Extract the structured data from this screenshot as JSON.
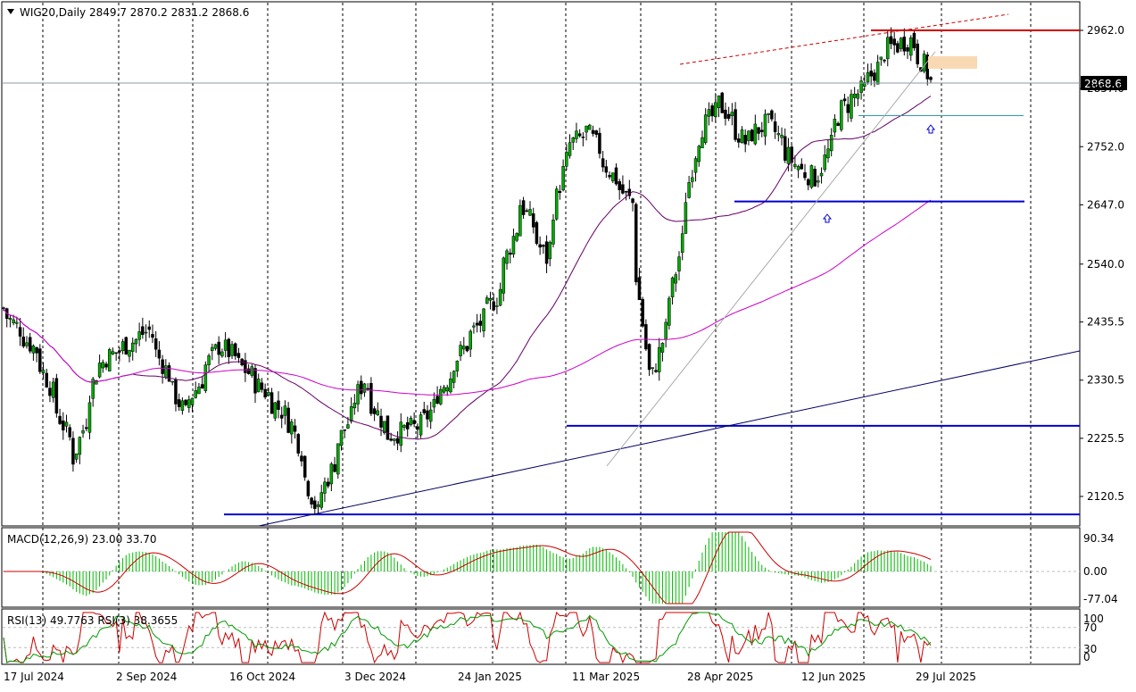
{
  "header": {
    "symbol_text": "WIG20,Daily  2849.7 2870.2 2831.2 2868.6",
    "menu_icon": "triangle-down-icon"
  },
  "current_price_label": "2868.6",
  "price_axis_labels": [
    "2962.0",
    "2857.0",
    "2752.0",
    "2647.0",
    "2540.0",
    "2435.5",
    "2330.5",
    "2225.5",
    "2120.5"
  ],
  "date_labels": [
    "17 Jul 2024",
    "2 Sep 2024",
    "16 Oct 2024",
    "3 Dec 2024",
    "24 Jan 2025",
    "11 Mar 2025",
    "28 Apr 2025",
    "12 Jun 2025",
    "29 Jul 2025"
  ],
  "macd_header": "MACD(12,26,9) 23.00 33.70",
  "macd_axis_labels": [
    "90.34",
    "0.00",
    "-77.04"
  ],
  "rsi_header": "RSI(13) 49.7763  RSI(3) 38.3655",
  "rsi_axis_labels": [
    "100",
    "70",
    "30",
    "0"
  ],
  "colors": {
    "up_candle": "#00aa00",
    "down_candle": "#000000",
    "ma_short": "#660066",
    "ma_long": "#cc00cc",
    "support_line": "#0000cc",
    "resistance_line": "#cc0000",
    "macd_hist": "#00bb00",
    "macd_signal": "#cc0000",
    "rsi13": "#009900",
    "rsi3": "#cc0000",
    "highlight_zone": "#f9d9b4"
  },
  "chart_data": [
    {
      "type": "candlestick",
      "title": "WIG20,Daily",
      "ohlc_last": {
        "open": 2849.7,
        "high": 2870.2,
        "low": 2831.2,
        "close": 2868.6
      },
      "x_range": [
        "2024-07-05",
        "2025-08-05"
      ],
      "x_ticks": [
        "17 Jul 2024",
        "2 Sep 2024",
        "16 Oct 2024",
        "3 Dec 2024",
        "24 Jan 2025",
        "11 Mar 2025",
        "28 Apr 2025",
        "12 Jun 2025",
        "29 Jul 2025"
      ],
      "y_range": [
        2040,
        3000
      ],
      "y_ticks": [
        2962.0,
        2857.0,
        2752.0,
        2647.0,
        2540.0,
        2435.5,
        2330.5,
        2225.5,
        2120.5
      ],
      "grid": "vertical dashed",
      "key_close_path": [
        [
          "2024-07-05",
          2460
        ],
        [
          "2024-07-20",
          2380
        ],
        [
          "2024-08-05",
          2190
        ],
        [
          "2024-08-15",
          2360
        ],
        [
          "2024-09-05",
          2420
        ],
        [
          "2024-09-20",
          2270
        ],
        [
          "2024-10-05",
          2400
        ],
        [
          "2024-10-20",
          2330
        ],
        [
          "2024-11-05",
          2250
        ],
        [
          "2024-11-15",
          2090
        ],
        [
          "2024-11-25",
          2220
        ],
        [
          "2024-12-05",
          2330
        ],
        [
          "2024-12-15",
          2230
        ],
        [
          "2024-12-30",
          2250
        ],
        [
          "2025-01-15",
          2380
        ],
        [
          "2025-01-30",
          2480
        ],
        [
          "2025-02-10",
          2650
        ],
        [
          "2025-02-20",
          2550
        ],
        [
          "2025-03-01",
          2750
        ],
        [
          "2025-03-10",
          2780
        ],
        [
          "2025-03-20",
          2700
        ],
        [
          "2025-03-28",
          2650
        ],
        [
          "2025-04-05",
          2300
        ],
        [
          "2025-04-15",
          2500
        ],
        [
          "2025-04-25",
          2770
        ],
        [
          "2025-05-05",
          2830
        ],
        [
          "2025-05-15",
          2760
        ],
        [
          "2025-05-25",
          2800
        ],
        [
          "2025-06-05",
          2720
        ],
        [
          "2025-06-15",
          2690
        ],
        [
          "2025-06-25",
          2820
        ],
        [
          "2025-07-05",
          2860
        ],
        [
          "2025-07-15",
          2930
        ],
        [
          "2025-07-24",
          2945
        ],
        [
          "2025-07-30",
          2900
        ],
        [
          "2025-08-01",
          2868.6
        ]
      ],
      "levels": [
        {
          "kind": "horizontal",
          "value": 2962.0,
          "color": "red"
        },
        {
          "kind": "horizontal",
          "value": 2653.0,
          "color": "blue"
        },
        {
          "kind": "horizontal",
          "value": 2248.0,
          "color": "blue"
        },
        {
          "kind": "horizontal",
          "value": 2088.0,
          "color": "blue"
        },
        {
          "kind": "horizontal",
          "value": 2808.0,
          "color": "teal"
        }
      ]
    },
    {
      "type": "line",
      "title": "MACD(12,26,9) 23.00 33.70",
      "series": [
        {
          "name": "MACD",
          "values_last": 23.0
        },
        {
          "name": "Signal",
          "values_last": 33.7
        }
      ],
      "y_ticks": [
        90.34,
        0.0,
        -77.04
      ]
    },
    {
      "type": "line",
      "title": "RSI(13) 49.7763  RSI(3) 38.3655",
      "series": [
        {
          "name": "RSI(13)",
          "values_last": 49.7763
        },
        {
          "name": "RSI(3)",
          "values_last": 38.3655
        }
      ],
      "y_ticks": [
        100,
        70,
        30,
        0
      ]
    }
  ]
}
